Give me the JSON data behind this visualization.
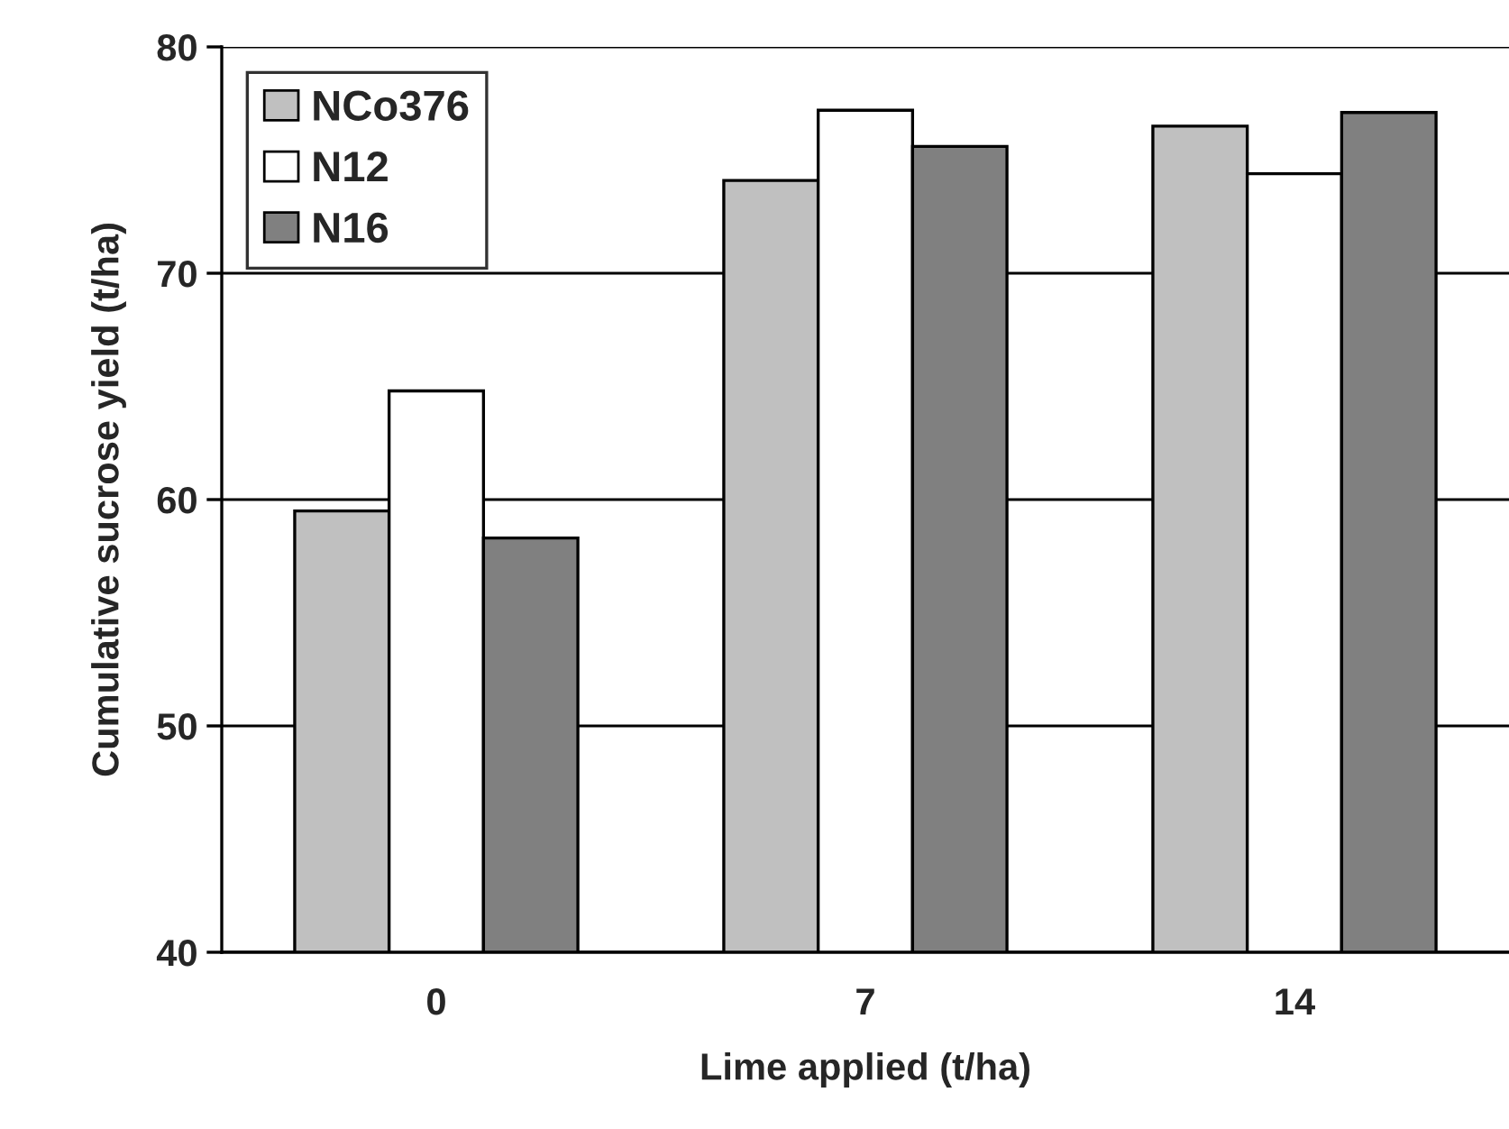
{
  "chart_data": {
    "type": "bar",
    "xlabel": "Lime applied (t/ha)",
    "ylabel": "Cumulative sucrose yield (t/ha)",
    "categories": [
      "0",
      "7",
      "14"
    ],
    "series": [
      {
        "name": "NCo376",
        "color": "#c0c0c0",
        "values": [
          59.5,
          74.1,
          76.5
        ]
      },
      {
        "name": "N12",
        "color": "#ffffff",
        "values": [
          64.8,
          77.2,
          74.4
        ]
      },
      {
        "name": "N16",
        "color": "#808080",
        "values": [
          58.3,
          75.6,
          77.1
        ]
      }
    ],
    "ylim": [
      40,
      80
    ],
    "yticks": [
      40,
      50,
      60,
      70,
      80
    ],
    "grid": "y",
    "legend": "top left"
  }
}
